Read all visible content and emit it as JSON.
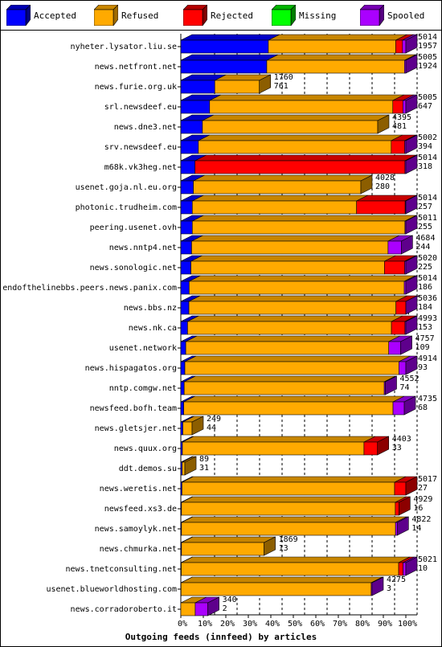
{
  "legend": {
    "items": [
      {
        "label": "Accepted",
        "color": "#0000ff"
      },
      {
        "label": "Refused",
        "color": "#ffaa00"
      },
      {
        "label": "Rejected",
        "color": "#ff0000"
      },
      {
        "label": "Missing",
        "color": "#00ff00"
      },
      {
        "label": "Spooled",
        "color": "#aa00ff"
      }
    ]
  },
  "chart_data": {
    "type": "bar",
    "orientation": "horizontal",
    "stacked": true,
    "title": "Outgoing feeds (innfeed) by articles",
    "xlabel": "",
    "ylabel": "",
    "xlim": [
      0,
      100
    ],
    "x_ticks": [
      "0%",
      "10%",
      "20%",
      "30%",
      "40%",
      "50%",
      "60%",
      "70%",
      "80%",
      "90%",
      "100%"
    ],
    "grid": true,
    "legend_position": "top",
    "categories": [
      "nyheter.lysator.liu.se",
      "news.netfront.net",
      "news.furie.org.uk",
      "srl.newsdeef.eu",
      "news.dne3.net",
      "srv.newsdeef.eu",
      "m68k.vk3heg.net",
      "usenet.goja.nl.eu.org",
      "photonic.trudheim.com",
      "peering.usenet.ovh",
      "news.nntp4.net",
      "news.sonologic.net",
      "endofthelinebbs.peers.news.panix.com",
      "news.bbs.nz",
      "news.nk.ca",
      "usenet.network",
      "news.hispagatos.org",
      "nntp.comgw.net",
      "newsfeed.bofh.team",
      "news.gletsjer.net",
      "news.quux.org",
      "ddt.demos.su",
      "news.weretis.net",
      "newsfeed.xs3.de",
      "news.samoylyk.net",
      "news.chmurka.net",
      "news.tnetconsulting.net",
      "usenet.blueworldhosting.com",
      "news.corradoroberto.it"
    ],
    "offered_labels": [
      "5014",
      "5005",
      "1760",
      "5005",
      "4395",
      "5002",
      "5014",
      "4028",
      "5014",
      "5011",
      "4684",
      "5020",
      "5014",
      "5036",
      "4993",
      "4757",
      "4914",
      "4552",
      "4735",
      "249",
      "4403",
      "89",
      "5017",
      "4929",
      "4822",
      "1869",
      "5021",
      "4275",
      "340"
    ],
    "accepted_labels": [
      "1957",
      "1924",
      "761",
      "647",
      "481",
      "394",
      "318",
      "280",
      "257",
      "255",
      "244",
      "225",
      "186",
      "184",
      "153",
      "109",
      "93",
      "74",
      "68",
      "44",
      "33",
      "31",
      "27",
      "16",
      "14",
      "13",
      "10",
      "3",
      "2"
    ],
    "series": [
      {
        "name": "Accepted",
        "color": "#0000ff",
        "values": [
          38.9,
          38.2,
          15.1,
          12.8,
          9.6,
          7.8,
          6.3,
          5.6,
          5.1,
          5.1,
          4.8,
          4.5,
          3.7,
          3.6,
          3.0,
          2.2,
          1.8,
          1.5,
          1.3,
          0.9,
          0.7,
          0.6,
          0.5,
          0.3,
          0.3,
          0.3,
          0.2,
          0.1,
          0.0
        ]
      },
      {
        "name": "Refused",
        "color": "#ffaa00",
        "values": [
          56.6,
          61.2,
          19.8,
          81.4,
          77.9,
          85.7,
          0.0,
          74.4,
          73.0,
          94.5,
          87.3,
          86.0,
          95.6,
          92.0,
          90.6,
          90.2,
          95.1,
          88.9,
          93.0,
          4.1,
          80.7,
          1.2,
          94.5,
          95.0,
          95.1,
          36.7,
          96.6,
          84.5,
          6.4
        ]
      },
      {
        "name": "Rejected",
        "color": "#ff0000",
        "values": [
          3.0,
          0.0,
          0.0,
          4.5,
          0.0,
          6.0,
          93.3,
          0.0,
          21.6,
          0.0,
          0.0,
          9.0,
          0.0,
          5.5,
          6.0,
          0.0,
          0.0,
          0.0,
          0.0,
          0.0,
          6.0,
          0.0,
          5.0,
          1.6,
          0.0,
          0.0,
          2.0,
          0.0,
          0.0
        ]
      },
      {
        "name": "Missing",
        "color": "#00ff00",
        "values": [
          0,
          0,
          0,
          0,
          0,
          0,
          0,
          0,
          0,
          0,
          0,
          0,
          0,
          0,
          0,
          0,
          0,
          0,
          0,
          0,
          0,
          0,
          0,
          0,
          0,
          0,
          0,
          0,
          0
        ]
      },
      {
        "name": "Spooled",
        "color": "#aa00ff",
        "values": [
          1.5,
          0.6,
          0.0,
          1.3,
          0.0,
          0.5,
          0.4,
          0.0,
          0.3,
          0.4,
          5.9,
          0.5,
          0.7,
          2.9,
          0.4,
          5.3,
          3.1,
          0.5,
          5.0,
          0.0,
          0.0,
          0.0,
          0.0,
          0.0,
          0.8,
          0.0,
          1.2,
          0.4,
          5.6
        ]
      }
    ]
  }
}
